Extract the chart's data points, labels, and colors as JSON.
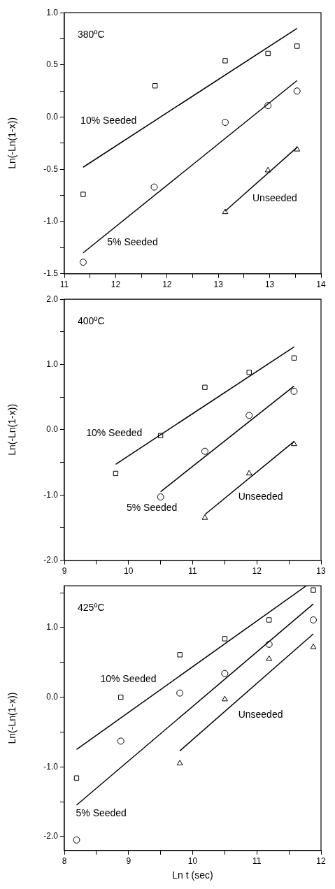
{
  "chart_data": [
    {
      "type": "scatter",
      "title": "380ºC",
      "ylabel": "Ln(-Ln(1-x))",
      "grid": false,
      "xlim": [
        11,
        14
      ],
      "xticks": [
        11,
        {
          "value": 11.3,
          "label": null
        },
        {
          "value": 11.6,
          "label": "12"
        },
        {
          "value": 11.9,
          "label": null
        },
        {
          "value": 12.2,
          "label": "12"
        },
        {
          "value": 12.5,
          "label": null
        },
        {
          "value": 12.8,
          "label": "13"
        },
        {
          "value": 13.1,
          "label": null
        },
        {
          "value": 13.4,
          "label": "13"
        },
        {
          "value": 13.7,
          "label": null
        },
        14
      ],
      "ylim": [
        -1.5,
        1
      ],
      "yticks": [
        -1.5,
        {
          "value": -1.25,
          "label": null
        },
        {
          "value": -1,
          "label": "-1.0"
        },
        {
          "value": -0.75,
          "label": null
        },
        -0.5,
        {
          "value": -0.25,
          "label": null
        },
        {
          "value": 0,
          "label": "0.0"
        },
        {
          "value": 0.25,
          "label": null
        },
        0.5,
        {
          "value": 0.75,
          "label": null
        },
        {
          "value": 1,
          "label": "1.0"
        }
      ],
      "series": [
        {
          "type": "scatter",
          "marker": "square",
          "color": "#000000",
          "x": [
            11.22,
            12.06,
            12.88,
            13.38,
            13.72
          ],
          "values": [
            -0.74,
            0.3,
            0.54,
            0.61,
            0.68
          ]
        },
        {
          "type": "scatter",
          "marker": "circle",
          "color": "#000000",
          "x": [
            11.22,
            12.05,
            12.88,
            13.38,
            13.72
          ],
          "values": [
            -1.39,
            -0.67,
            -0.05,
            0.11,
            0.25
          ]
        },
        {
          "type": "scatter",
          "marker": "triangle",
          "color": "#000000",
          "x": [
            12.88,
            13.38,
            13.72
          ],
          "values": [
            -0.91,
            -0.51,
            -0.31
          ]
        },
        {
          "type": "line",
          "marker": "none",
          "color": "#000000",
          "x": [
            11.22,
            13.72
          ],
          "values": [
            -0.48,
            0.85
          ]
        },
        {
          "type": "line",
          "marker": "none",
          "color": "#000000",
          "x": [
            11.22,
            13.72
          ],
          "values": [
            -1.3,
            0.35
          ]
        },
        {
          "type": "line",
          "marker": "none",
          "color": "#000000",
          "x": [
            12.88,
            13.72
          ],
          "values": [
            -0.9,
            -0.29
          ]
        }
      ],
      "annotations": [
        "10% Seeded",
        "5% Seeded",
        "Unseeded"
      ]
    },
    {
      "type": "scatter",
      "title": "400ºC",
      "ylabel": "Ln(-Ln(1-x))",
      "grid": false,
      "xlim": [
        9,
        13
      ],
      "xticks": [
        9,
        {
          "value": 9.5,
          "label": null
        },
        10,
        {
          "value": 10.5,
          "label": null
        },
        11,
        {
          "value": 11.5,
          "label": null
        },
        12,
        {
          "value": 12.5,
          "label": null
        },
        13
      ],
      "ylim": [
        -2,
        2
      ],
      "yticks": [
        {
          "value": -2,
          "label": "-2.0"
        },
        {
          "value": -1.5,
          "label": null
        },
        {
          "value": -1,
          "label": "-1.0"
        },
        {
          "value": -0.5,
          "label": null
        },
        {
          "value": 0,
          "label": "0.0"
        },
        {
          "value": 0.5,
          "label": null
        },
        {
          "value": 1,
          "label": "1.0"
        },
        {
          "value": 1.5,
          "label": null
        },
        {
          "value": 2,
          "label": "2.0"
        }
      ],
      "series": [
        {
          "type": "scatter",
          "marker": "square",
          "color": "#000000",
          "x": [
            9.8,
            10.5,
            11.19,
            11.88,
            12.58
          ],
          "values": [
            -0.67,
            -0.09,
            0.65,
            0.88,
            1.1
          ]
        },
        {
          "type": "scatter",
          "marker": "circle",
          "color": "#000000",
          "x": [
            10.5,
            11.19,
            11.88,
            12.58
          ],
          "values": [
            -1.03,
            -0.33,
            0.22,
            0.59
          ]
        },
        {
          "type": "scatter",
          "marker": "triangle",
          "color": "#000000",
          "x": [
            11.19,
            11.88,
            12.58
          ],
          "values": [
            -1.35,
            -0.67,
            -0.22
          ]
        },
        {
          "type": "line",
          "marker": "none",
          "color": "#000000",
          "x": [
            9.8,
            12.58
          ],
          "values": [
            -0.53,
            1.27
          ]
        },
        {
          "type": "line",
          "marker": "none",
          "color": "#000000",
          "x": [
            10.5,
            12.58
          ],
          "values": [
            -0.95,
            0.67
          ]
        },
        {
          "type": "line",
          "marker": "none",
          "color": "#000000",
          "x": [
            11.19,
            12.58
          ],
          "values": [
            -1.3,
            -0.18
          ]
        }
      ],
      "annotations": [
        "10% Seeded",
        "5% Seeded",
        "Unseeded"
      ]
    },
    {
      "type": "scatter",
      "title": "425ºC",
      "xlabel": "Ln t (sec)",
      "ylabel": "Ln(-Ln(1-x))",
      "grid": false,
      "xlim": [
        8,
        12
      ],
      "xticks": [
        8,
        {
          "value": 8.5,
          "label": null
        },
        9,
        {
          "value": 9.5,
          "label": null
        },
        10,
        {
          "value": 10.5,
          "label": null
        },
        11,
        {
          "value": 11.5,
          "label": null
        },
        12
      ],
      "ylim": [
        -2.2,
        1.6
      ],
      "yticks": [
        {
          "value": -2,
          "label": "-2.0"
        },
        {
          "value": -1.5,
          "label": null
        },
        {
          "value": -1,
          "label": "-1.0"
        },
        {
          "value": -0.5,
          "label": null
        },
        {
          "value": 0,
          "label": "0.0"
        },
        {
          "value": 0.5,
          "label": null
        },
        {
          "value": 1,
          "label": "1.0"
        },
        {
          "value": 1.5,
          "label": null
        }
      ],
      "series": [
        {
          "type": "scatter",
          "marker": "square",
          "color": "#000000",
          "x": [
            8.19,
            8.88,
            9.8,
            10.5,
            11.19,
            11.88
          ],
          "values": [
            -1.16,
            0,
            0.61,
            0.84,
            1.11,
            1.54
          ]
        },
        {
          "type": "scatter",
          "marker": "circle",
          "color": "#000000",
          "x": [
            8.19,
            8.88,
            9.8,
            10.5,
            11.19,
            11.88
          ],
          "values": [
            -2.05,
            -0.63,
            0.06,
            0.34,
            0.76,
            1.11
          ]
        },
        {
          "type": "scatter",
          "marker": "triangle",
          "color": "#000000",
          "x": [
            9.8,
            10.5,
            11.19,
            11.88
          ],
          "values": [
            -0.95,
            -0.03,
            0.55,
            0.72
          ]
        },
        {
          "type": "line",
          "marker": "none",
          "color": "#000000",
          "x": [
            8.19,
            11.77
          ],
          "values": [
            -0.75,
            1.6
          ]
        },
        {
          "type": "line",
          "marker": "none",
          "color": "#000000",
          "x": [
            8.19,
            11.88
          ],
          "values": [
            -1.55,
            1.34
          ]
        },
        {
          "type": "line",
          "marker": "none",
          "color": "#000000",
          "x": [
            9.8,
            11.88
          ],
          "values": [
            -0.77,
            0.91
          ]
        }
      ],
      "annotations": [
        "10% Seeded",
        "5% Seeded",
        "Unseeded"
      ]
    }
  ]
}
